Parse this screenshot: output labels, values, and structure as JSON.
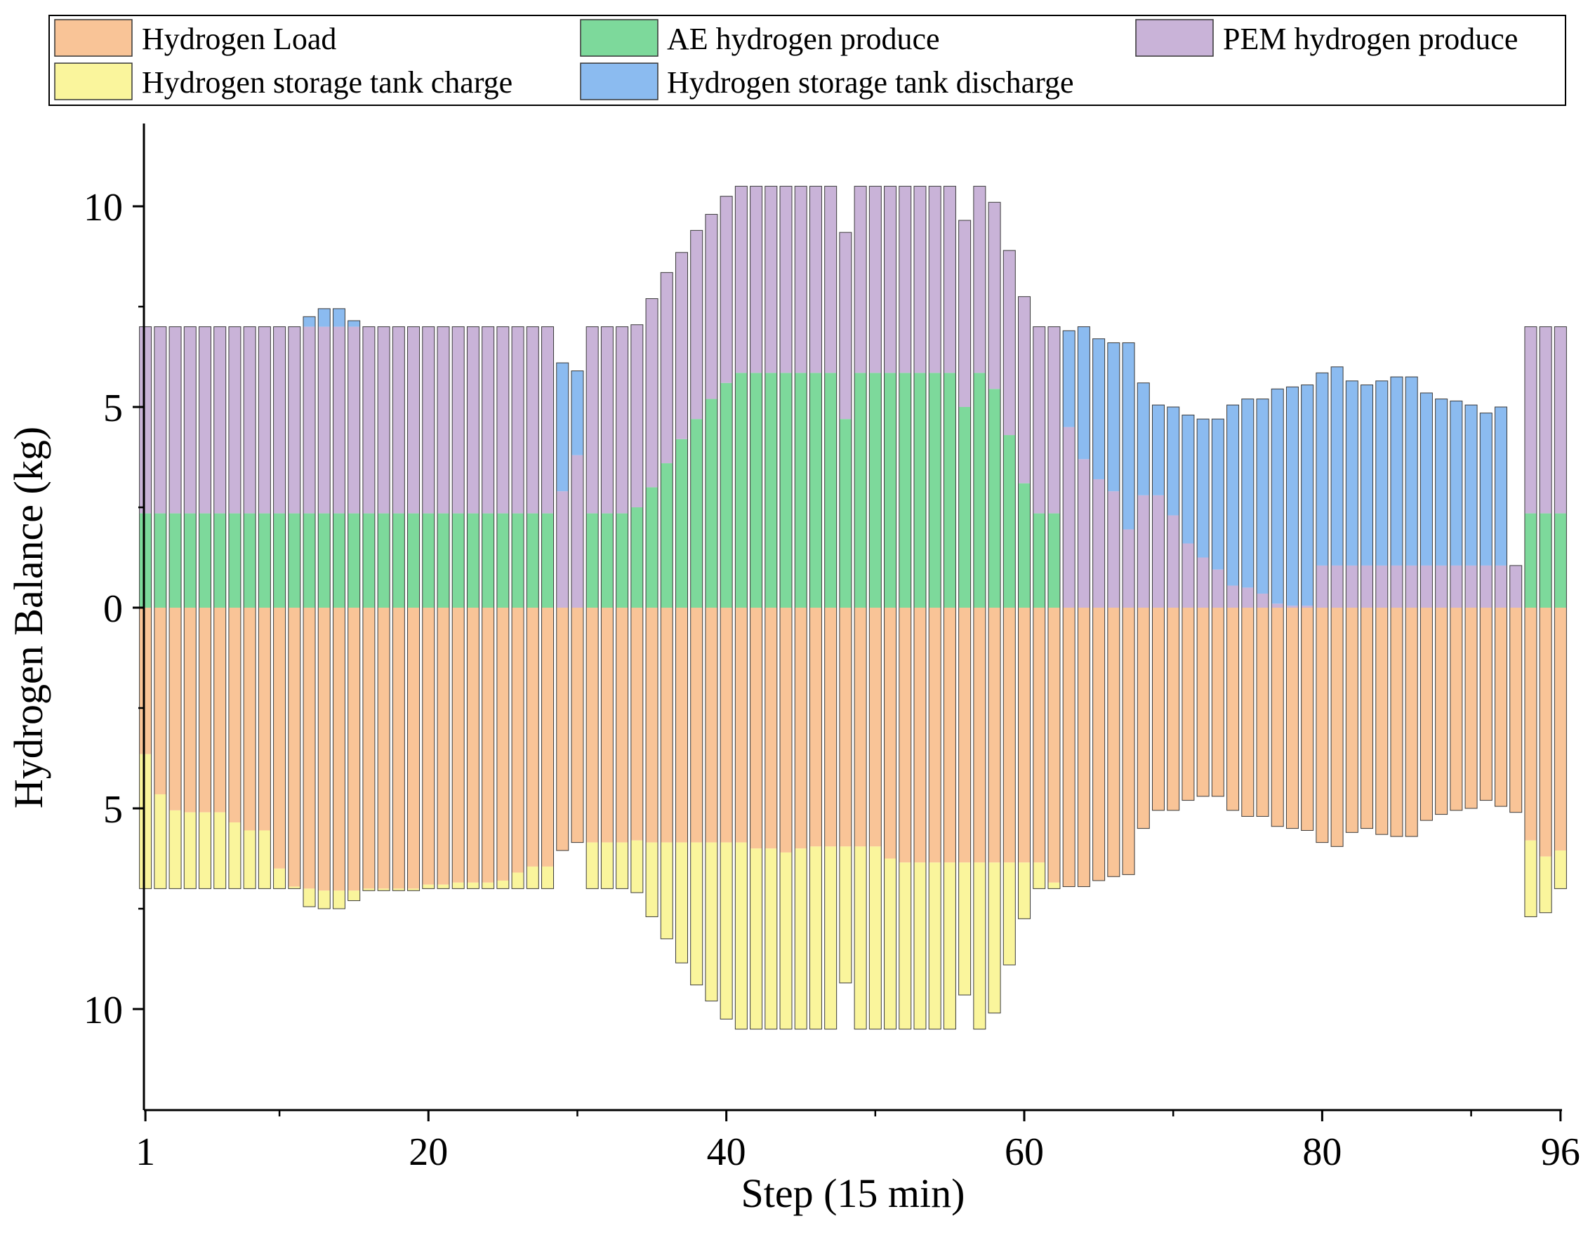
{
  "chart_data": {
    "type": "bar",
    "stacked": true,
    "xlabel": "Step (15 min)",
    "ylabel": "Hydrogen Balance (kg)",
    "xlim": [
      1,
      96
    ],
    "ylim": [
      -12.5,
      12
    ],
    "x_ticks": [
      1,
      20,
      40,
      60,
      80,
      96
    ],
    "y_ticks": [
      {
        "value": 10,
        "label": "10"
      },
      {
        "value": 5,
        "label": "5"
      },
      {
        "value": 0,
        "label": "0"
      },
      {
        "value": -5,
        "label": "5"
      },
      {
        "value": -10,
        "label": "10"
      }
    ],
    "legend": [
      {
        "key": "load",
        "label": "Hydrogen Load",
        "color": "#F9C497"
      },
      {
        "key": "ae",
        "label": "AE hydrogen produce",
        "color": "#7DD99B"
      },
      {
        "key": "pem",
        "label": "PEM hydrogen produce",
        "color": "#C9B3D8"
      },
      {
        "key": "charge",
        "label": "Hydrogen storage tank charge",
        "color": "#FAF59C"
      },
      {
        "key": "discharge",
        "label": "Hydrogen storage tank discharge",
        "color": "#8BBBF0"
      }
    ],
    "x": [
      1,
      2,
      3,
      4,
      5,
      6,
      7,
      8,
      9,
      10,
      11,
      12,
      13,
      14,
      15,
      16,
      17,
      18,
      19,
      20,
      21,
      22,
      23,
      24,
      25,
      26,
      27,
      28,
      29,
      30,
      31,
      32,
      33,
      34,
      35,
      36,
      37,
      38,
      39,
      40,
      41,
      42,
      43,
      44,
      45,
      46,
      47,
      48,
      49,
      50,
      51,
      52,
      53,
      54,
      55,
      56,
      57,
      58,
      59,
      60,
      61,
      62,
      63,
      64,
      65,
      66,
      67,
      68,
      69,
      70,
      71,
      72,
      73,
      74,
      75,
      76,
      77,
      78,
      79,
      80,
      81,
      82,
      83,
      84,
      85,
      86,
      87,
      88,
      89,
      90,
      91,
      92,
      93,
      94,
      95,
      96
    ],
    "series": [
      {
        "name": "AE hydrogen produce",
        "values": [
          2.35,
          2.35,
          2.35,
          2.35,
          2.35,
          2.35,
          2.35,
          2.35,
          2.35,
          2.35,
          2.35,
          2.35,
          2.35,
          2.35,
          2.35,
          2.35,
          2.35,
          2.35,
          2.35,
          2.35,
          2.35,
          2.35,
          2.35,
          2.35,
          2.35,
          2.35,
          2.35,
          2.35,
          0,
          0,
          2.35,
          2.35,
          2.35,
          2.5,
          3.0,
          3.6,
          4.2,
          4.7,
          5.2,
          5.6,
          5.85,
          5.85,
          5.85,
          5.85,
          5.85,
          5.85,
          5.85,
          4.7,
          5.85,
          5.85,
          5.85,
          5.85,
          5.85,
          5.85,
          5.85,
          5.0,
          5.85,
          5.45,
          4.3,
          3.1,
          2.35,
          2.35,
          0,
          0,
          0,
          0,
          0,
          0,
          0,
          0,
          0,
          0,
          0,
          0,
          0,
          0,
          0,
          0,
          0,
          0,
          0,
          0,
          0,
          0,
          0,
          0,
          0,
          0,
          0,
          0,
          0,
          0,
          0,
          2.35,
          2.35,
          2.35
        ]
      },
      {
        "name": "PEM hydrogen produce",
        "values": [
          4.65,
          4.65,
          4.65,
          4.65,
          4.65,
          4.65,
          4.65,
          4.65,
          4.65,
          4.65,
          4.65,
          4.65,
          4.65,
          4.65,
          4.65,
          4.65,
          4.65,
          4.65,
          4.65,
          4.65,
          4.65,
          4.65,
          4.65,
          4.65,
          4.65,
          4.65,
          4.65,
          4.65,
          2.9,
          3.8,
          4.65,
          4.65,
          4.65,
          4.55,
          4.7,
          4.75,
          4.65,
          4.7,
          4.6,
          4.65,
          4.65,
          4.65,
          4.65,
          4.65,
          4.65,
          4.65,
          4.65,
          4.65,
          4.65,
          4.65,
          4.65,
          4.65,
          4.65,
          4.65,
          4.65,
          4.65,
          4.65,
          4.65,
          4.6,
          4.65,
          4.65,
          4.65,
          4.5,
          3.7,
          3.2,
          2.9,
          1.95,
          2.8,
          2.8,
          2.3,
          1.6,
          1.25,
          0.95,
          0.55,
          0.5,
          0.35,
          0.1,
          0.05,
          0.05,
          1.05,
          1.05,
          1.05,
          1.05,
          1.05,
          1.05,
          1.05,
          1.05,
          1.05,
          1.05,
          1.05,
          1.05,
          1.05,
          1.05,
          4.65,
          4.65,
          4.65
        ]
      },
      {
        "name": "Hydrogen storage tank discharge",
        "values": [
          0,
          0,
          0,
          0,
          0,
          0,
          0,
          0,
          0,
          0,
          0,
          0.25,
          0.45,
          0.45,
          0.15,
          0,
          0,
          0,
          0,
          0,
          0,
          0,
          0,
          0,
          0,
          0,
          0,
          0,
          3.2,
          2.1,
          0,
          0,
          0,
          0,
          0,
          0,
          0,
          0,
          0,
          0,
          0,
          0,
          0,
          0,
          0,
          0,
          0,
          0,
          0,
          0,
          0,
          0,
          0,
          0,
          0,
          0,
          0,
          0,
          0,
          0,
          0,
          0,
          2.4,
          3.3,
          3.5,
          3.7,
          4.65,
          2.8,
          2.25,
          2.7,
          3.2,
          3.45,
          3.75,
          4.5,
          4.7,
          4.85,
          5.35,
          5.45,
          5.5,
          4.8,
          4.95,
          4.6,
          4.5,
          4.6,
          4.7,
          4.7,
          4.3,
          4.15,
          4.1,
          4.0,
          3.8,
          3.95,
          0,
          0,
          0,
          0
        ]
      },
      {
        "name": "Hydrogen Load",
        "values": [
          -3.65,
          -4.65,
          -5.05,
          -5.1,
          -5.1,
          -5.1,
          -5.35,
          -5.55,
          -5.55,
          -6.5,
          -6.95,
          -7.0,
          -7.05,
          -7.05,
          -7.05,
          -7.0,
          -7.0,
          -7.0,
          -7.0,
          -6.9,
          -6.9,
          -6.85,
          -6.85,
          -6.85,
          -6.8,
          -6.6,
          -6.45,
          -6.45,
          -6.05,
          -5.85,
          -5.85,
          -5.85,
          -5.85,
          -5.8,
          -5.85,
          -5.85,
          -5.85,
          -5.85,
          -5.85,
          -5.85,
          -5.85,
          -6.0,
          -6.0,
          -6.1,
          -6.0,
          -5.95,
          -5.95,
          -5.95,
          -5.95,
          -5.95,
          -6.25,
          -6.35,
          -6.35,
          -6.35,
          -6.35,
          -6.35,
          -6.35,
          -6.35,
          -6.35,
          -6.35,
          -6.35,
          -6.85,
          -6.95,
          -6.95,
          -6.8,
          -6.7,
          -6.65,
          -5.5,
          -5.05,
          -5.05,
          -4.8,
          -4.7,
          -4.7,
          -5.05,
          -5.2,
          -5.2,
          -5.45,
          -5.5,
          -5.55,
          -5.85,
          -5.95,
          -5.6,
          -5.5,
          -5.65,
          -5.7,
          -5.7,
          -5.3,
          -5.15,
          -5.05,
          -5.0,
          -4.8,
          -4.95,
          -5.1,
          -5.8,
          -6.2,
          -6.05
        ]
      },
      {
        "name": "Hydrogen storage tank charge",
        "values": [
          -3.35,
          -2.35,
          -1.95,
          -1.9,
          -1.9,
          -1.9,
          -1.65,
          -1.45,
          -1.45,
          -0.5,
          -0.05,
          -0.45,
          -0.45,
          -0.45,
          -0.25,
          -0.05,
          -0.05,
          -0.05,
          -0.05,
          -0.1,
          -0.1,
          -0.15,
          -0.15,
          -0.15,
          -0.2,
          -0.4,
          -0.55,
          -0.55,
          0,
          0,
          -1.15,
          -1.15,
          -1.15,
          -1.3,
          -1.85,
          -2.4,
          -3.0,
          -3.55,
          -3.95,
          -4.4,
          -4.65,
          -4.5,
          -4.5,
          -4.4,
          -4.5,
          -4.55,
          -4.55,
          -3.4,
          -4.55,
          -4.55,
          -4.25,
          -4.15,
          -4.15,
          -4.15,
          -4.15,
          -3.3,
          -4.15,
          -3.75,
          -2.55,
          -1.4,
          -0.65,
          -0.15,
          0,
          0,
          0,
          0,
          0,
          0,
          0,
          0,
          0,
          0,
          0,
          0,
          0,
          0,
          0,
          0,
          0,
          0,
          0,
          0,
          0,
          0,
          0,
          0,
          0,
          0,
          0,
          0,
          0,
          0,
          0,
          -1.9,
          -1.4,
          -0.95
        ]
      }
    ]
  }
}
